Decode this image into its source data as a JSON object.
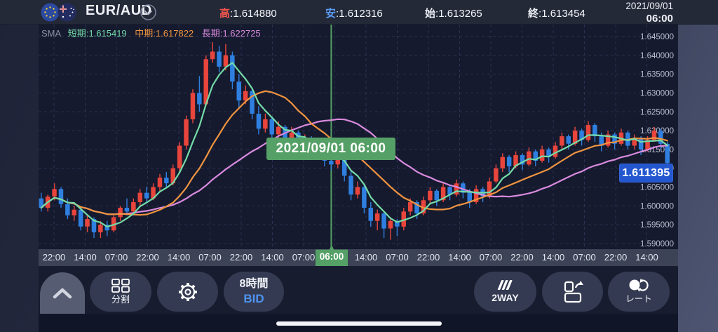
{
  "header": {
    "pair": "EUR/AUD",
    "high_label": "高",
    "high_value": "1.614880",
    "low_label": "安",
    "low_value": "1.612316",
    "open_label": "始",
    "open_value": "1.613265",
    "close_label": "終",
    "close_value": "1.613454",
    "date": "2021/09/01",
    "time": "06:00"
  },
  "legend": {
    "sma_label": "SMA",
    "short_label": "短期",
    "short_value": "1.615419",
    "mid_label": "中期",
    "mid_value": "1.617822",
    "long_label": "長期",
    "long_value": "1.622725"
  },
  "cursor": {
    "datetime_label": "2021/09/01 06:00",
    "time_label": "06:00"
  },
  "current_price_label": "1.611395",
  "toolbar": {
    "split_label": "分割",
    "timeframe_label": "8時間",
    "price_side_label": "BID",
    "twoway_label": "2WAY",
    "rate_label": "レート"
  },
  "colors": {
    "candle_up": "#e8453c",
    "candle_down": "#2f7fe0",
    "sma_short": "#74dba8",
    "sma_mid": "#f09440",
    "sma_long": "#d98ade",
    "cursor_green": "#55a066",
    "grid": "#2b3152",
    "axis_text": "#b9bfce",
    "price_tag_bg": "#2457cf"
  },
  "chart_data": {
    "type": "candlestick",
    "title": "EUR/AUD 8時間足 BID",
    "ylim": [
      1.5885,
      1.6482
    ],
    "price_ticks": [
      1.645,
      1.64,
      1.635,
      1.63,
      1.625,
      1.62,
      1.615,
      1.61,
      1.605,
      1.6,
      1.595,
      1.59
    ],
    "time_labels": [
      {
        "text": "22:00"
      },
      {
        "text": "14:00"
      },
      {
        "text": "07:00"
      },
      {
        "text": "22:00"
      },
      {
        "text": "14:00"
      },
      {
        "text": "07:00"
      },
      {
        "text": "22:00"
      },
      {
        "text": "14:00"
      },
      {
        "text": "07:00"
      },
      {
        "text": "06:00",
        "highlighted": true
      },
      {
        "text": "14:00"
      },
      {
        "text": "07:00"
      },
      {
        "text": "22:00"
      },
      {
        "text": "14:00"
      },
      {
        "text": "07:00"
      },
      {
        "text": "22:00"
      },
      {
        "text": "14:00"
      },
      {
        "text": "07:00"
      },
      {
        "text": "22:00"
      },
      {
        "text": "14:00"
      }
    ],
    "cursor_index": 44,
    "cursor_datetime": "2021/09/01 06:00",
    "current_price": 1.611395,
    "sma": [
      {
        "name": "短期",
        "window": 5,
        "value": 1.615419
      },
      {
        "name": "中期",
        "window": 13,
        "value": 1.617822
      },
      {
        "name": "長期",
        "window": 26,
        "value": 1.622725
      }
    ],
    "candles": [
      [
        1.602,
        1.6035,
        1.5985,
        1.5995
      ],
      [
        1.5995,
        1.603,
        1.5985,
        1.6025
      ],
      [
        1.6025,
        1.606,
        1.6015,
        1.6045
      ],
      [
        1.6045,
        1.605,
        1.5995,
        1.6005
      ],
      [
        1.6005,
        1.602,
        1.5965,
        1.5975
      ],
      [
        1.5975,
        1.6,
        1.596,
        1.599
      ],
      [
        1.599,
        1.5995,
        1.5935,
        1.5945
      ],
      [
        1.5945,
        1.5975,
        1.593,
        1.5965
      ],
      [
        1.5965,
        1.597,
        1.5915,
        1.593
      ],
      [
        1.593,
        1.596,
        1.5915,
        1.595
      ],
      [
        1.595,
        1.596,
        1.592,
        1.5935
      ],
      [
        1.5935,
        1.5975,
        1.593,
        1.597
      ],
      [
        1.597,
        1.6,
        1.596,
        1.5995
      ],
      [
        1.5995,
        1.602,
        1.5975,
        1.5985
      ],
      [
        1.5985,
        1.602,
        1.598,
        1.601
      ],
      [
        1.601,
        1.6045,
        1.6,
        1.6035
      ],
      [
        1.6035,
        1.605,
        1.601,
        1.602
      ],
      [
        1.602,
        1.606,
        1.6015,
        1.605
      ],
      [
        1.605,
        1.6085,
        1.604,
        1.6075
      ],
      [
        1.6075,
        1.609,
        1.605,
        1.606
      ],
      [
        1.606,
        1.611,
        1.6055,
        1.61
      ],
      [
        1.61,
        1.617,
        1.609,
        1.616
      ],
      [
        1.616,
        1.624,
        1.615,
        1.623
      ],
      [
        1.623,
        1.631,
        1.622,
        1.63
      ],
      [
        1.63,
        1.6345,
        1.625,
        1.627
      ],
      [
        1.627,
        1.64,
        1.6265,
        1.639
      ],
      [
        1.639,
        1.6435,
        1.638,
        1.641
      ],
      [
        1.641,
        1.6425,
        1.6355,
        1.637
      ],
      [
        1.637,
        1.643,
        1.636,
        1.64
      ],
      [
        1.64,
        1.641,
        1.631,
        1.633
      ],
      [
        1.633,
        1.635,
        1.626,
        1.628
      ],
      [
        1.628,
        1.632,
        1.627,
        1.6305
      ],
      [
        1.6305,
        1.631,
        1.623,
        1.6245
      ],
      [
        1.6245,
        1.6265,
        1.619,
        1.6205
      ],
      [
        1.6205,
        1.6245,
        1.6195,
        1.623
      ],
      [
        1.623,
        1.6235,
        1.6175,
        1.619
      ],
      [
        1.619,
        1.6225,
        1.618,
        1.621
      ],
      [
        1.621,
        1.6215,
        1.616,
        1.6175
      ],
      [
        1.6175,
        1.621,
        1.6165,
        1.6195
      ],
      [
        1.6195,
        1.62,
        1.614,
        1.6155
      ],
      [
        1.6155,
        1.619,
        1.6145,
        1.618
      ],
      [
        1.618,
        1.6185,
        1.6125,
        1.614
      ],
      [
        1.614,
        1.617,
        1.613,
        1.616
      ],
      [
        1.616,
        1.6165,
        1.6105,
        1.612
      ],
      [
        1.612,
        1.615,
        1.6095,
        1.611
      ],
      [
        1.611,
        1.614,
        1.61,
        1.613
      ],
      [
        1.613,
        1.6135,
        1.6065,
        1.608
      ],
      [
        1.608,
        1.6095,
        1.6015,
        1.603
      ],
      [
        1.603,
        1.6065,
        1.602,
        1.605
      ],
      [
        1.605,
        1.6055,
        1.598,
        1.5995
      ],
      [
        1.5995,
        1.601,
        1.5945,
        1.596
      ],
      [
        1.596,
        1.599,
        1.5935,
        1.598
      ],
      [
        1.598,
        1.5985,
        1.5915,
        1.594
      ],
      [
        1.594,
        1.597,
        1.591,
        1.596
      ],
      [
        1.596,
        1.5965,
        1.592,
        1.5945
      ],
      [
        1.5945,
        1.5995,
        1.5935,
        1.5985
      ],
      [
        1.5985,
        1.602,
        1.5975,
        1.601
      ],
      [
        1.601,
        1.6015,
        1.5965,
        1.598
      ],
      [
        1.598,
        1.6025,
        1.5975,
        1.6015
      ],
      [
        1.6015,
        1.605,
        1.6005,
        1.604
      ],
      [
        1.604,
        1.6045,
        1.6,
        1.6015
      ],
      [
        1.6015,
        1.606,
        1.601,
        1.605
      ],
      [
        1.605,
        1.6055,
        1.6015,
        1.603
      ],
      [
        1.603,
        1.607,
        1.6025,
        1.606
      ],
      [
        1.606,
        1.6065,
        1.602,
        1.6035
      ],
      [
        1.6035,
        1.6045,
        1.5995,
        1.601
      ],
      [
        1.601,
        1.6055,
        1.6005,
        1.6045
      ],
      [
        1.6045,
        1.605,
        1.601,
        1.6025
      ],
      [
        1.6025,
        1.6075,
        1.602,
        1.6065
      ],
      [
        1.6065,
        1.611,
        1.606,
        1.61
      ],
      [
        1.61,
        1.614,
        1.609,
        1.613
      ],
      [
        1.613,
        1.6135,
        1.609,
        1.6105
      ],
      [
        1.6105,
        1.6145,
        1.61,
        1.6135
      ],
      [
        1.6135,
        1.614,
        1.6095,
        1.611
      ],
      [
        1.611,
        1.6155,
        1.6105,
        1.6145
      ],
      [
        1.6145,
        1.615,
        1.6105,
        1.612
      ],
      [
        1.612,
        1.616,
        1.6115,
        1.615
      ],
      [
        1.615,
        1.6155,
        1.6115,
        1.613
      ],
      [
        1.613,
        1.617,
        1.6125,
        1.616
      ],
      [
        1.616,
        1.6195,
        1.615,
        1.6185
      ],
      [
        1.6185,
        1.619,
        1.615,
        1.6165
      ],
      [
        1.6165,
        1.621,
        1.616,
        1.62
      ],
      [
        1.62,
        1.6205,
        1.616,
        1.6175
      ],
      [
        1.6175,
        1.6225,
        1.617,
        1.6215
      ],
      [
        1.6215,
        1.622,
        1.617,
        1.6185
      ],
      [
        1.6185,
        1.6195,
        1.6145,
        1.616
      ],
      [
        1.616,
        1.62,
        1.6155,
        1.619
      ],
      [
        1.619,
        1.6195,
        1.615,
        1.6165
      ],
      [
        1.6165,
        1.6205,
        1.616,
        1.6195
      ],
      [
        1.6195,
        1.62,
        1.615,
        1.616
      ],
      [
        1.616,
        1.619,
        1.615,
        1.618
      ],
      [
        1.618,
        1.6185,
        1.6135,
        1.615
      ],
      [
        1.615,
        1.6185,
        1.6145,
        1.6175
      ],
      [
        1.6175,
        1.621,
        1.617,
        1.62
      ],
      [
        1.62,
        1.6205,
        1.615,
        1.6165
      ],
      [
        1.6165,
        1.617,
        1.61,
        1.611395
      ]
    ]
  }
}
